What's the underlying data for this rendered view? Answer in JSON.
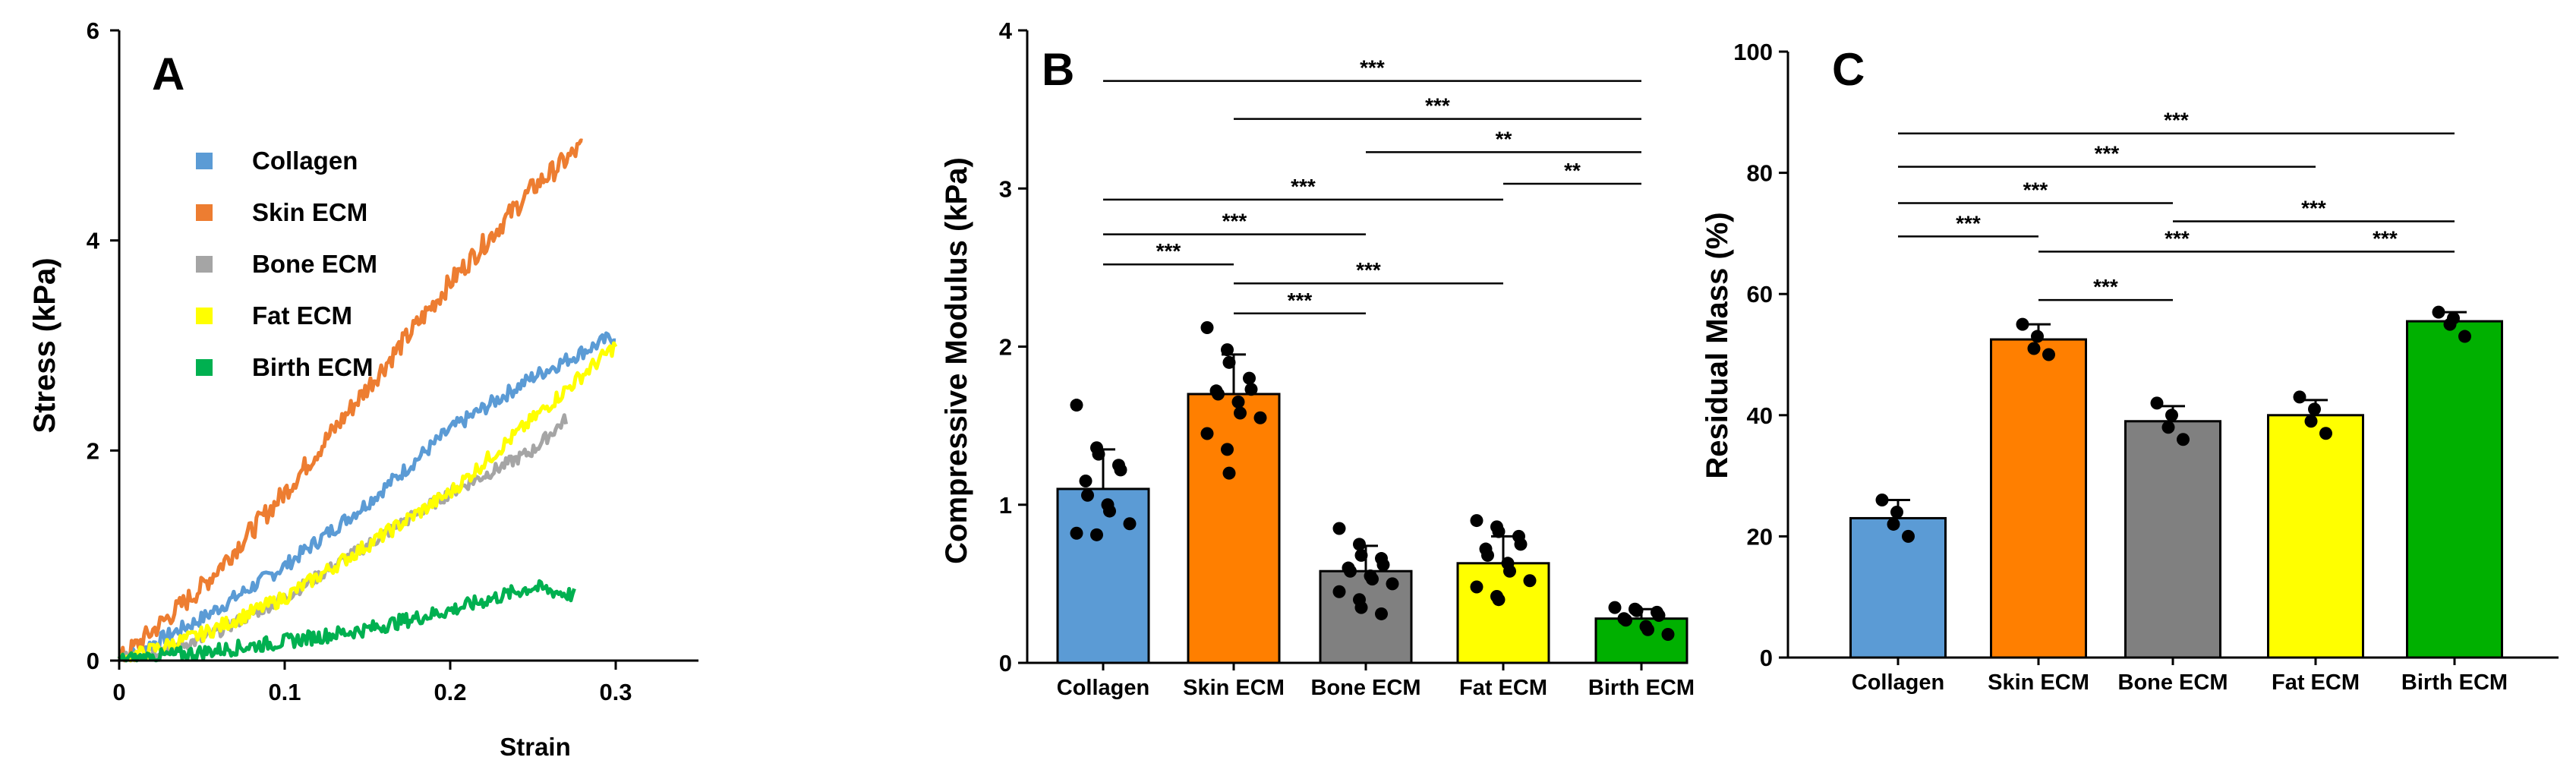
{
  "figure": {
    "panels": [
      "A",
      "B",
      "C"
    ]
  },
  "chart_data": [
    {
      "panel": "A",
      "type": "line",
      "xlabel": "Strain",
      "ylabel": "Stress (kPa)",
      "xlim": [
        0,
        0.35
      ],
      "ylim": [
        0,
        6
      ],
      "xticks": [
        0,
        0.1,
        0.2,
        0.3
      ],
      "xtick_labels": [
        "0",
        "0.1",
        "0.2",
        "0.3"
      ],
      "yticks": [
        0,
        2,
        4,
        6
      ],
      "ytick_labels": [
        "0",
        "2",
        "4",
        "6"
      ],
      "legend_position": "upper-left",
      "series": [
        {
          "name": "Collagen",
          "color": "#5B9BD5",
          "x": [
            0,
            0.05,
            0.1,
            0.15,
            0.2,
            0.25,
            0.3
          ],
          "y": [
            0,
            0.4,
            0.9,
            1.5,
            2.2,
            2.7,
            3.1
          ]
        },
        {
          "name": "Skin ECM",
          "color": "#ED7D31",
          "x": [
            0,
            0.05,
            0.1,
            0.15,
            0.2,
            0.25,
            0.28
          ],
          "y": [
            0,
            0.7,
            1.6,
            2.6,
            3.6,
            4.5,
            4.9
          ]
        },
        {
          "name": "Bone ECM",
          "color": "#A5A5A5",
          "x": [
            0,
            0.05,
            0.1,
            0.15,
            0.2,
            0.25,
            0.27
          ],
          "y": [
            0,
            0.2,
            0.6,
            1.1,
            1.6,
            2.0,
            2.3
          ]
        },
        {
          "name": "Fat ECM",
          "color": "#FFFF00",
          "x": [
            0,
            0.05,
            0.1,
            0.15,
            0.2,
            0.25,
            0.3
          ],
          "y": [
            0,
            0.25,
            0.6,
            1.1,
            1.6,
            2.3,
            3.0
          ]
        },
        {
          "name": "Birth ECM",
          "color": "#00B050",
          "x": [
            0,
            0.05,
            0.1,
            0.15,
            0.2,
            0.25,
            0.275
          ],
          "y": [
            0,
            0.08,
            0.18,
            0.3,
            0.48,
            0.7,
            0.62
          ]
        }
      ]
    },
    {
      "panel": "B",
      "type": "bar",
      "ylabel": "Compressive Modulus (kPa)",
      "ylim": [
        0,
        4
      ],
      "yticks": [
        0,
        1,
        2,
        3,
        4
      ],
      "ytick_labels": [
        "0",
        "1",
        "2",
        "3",
        "4"
      ],
      "categories": [
        "Collagen",
        "Skin ECM",
        "Bone ECM",
        "Fat ECM",
        "Birth ECM"
      ],
      "colors": [
        "#5B9BD5",
        "#FF7F00",
        "#808080",
        "#FFFF00",
        "#00B000"
      ],
      "values": [
        1.1,
        1.7,
        0.58,
        0.63,
        0.28
      ],
      "sd": [
        0.25,
        0.25,
        0.16,
        0.17,
        0.06
      ],
      "points": [
        [
          1.63,
          1.36,
          1.32,
          1.25,
          1.22,
          1.15,
          1.06,
          1.0,
          0.96,
          0.88,
          0.82,
          0.81
        ],
        [
          2.12,
          1.98,
          1.9,
          1.8,
          1.73,
          1.72,
          1.7,
          1.65,
          1.58,
          1.55,
          1.45,
          1.35,
          1.2
        ],
        [
          0.85,
          0.75,
          0.68,
          0.66,
          0.62,
          0.6,
          0.58,
          0.55,
          0.53,
          0.5,
          0.45,
          0.4,
          0.35,
          0.31
        ],
        [
          0.9,
          0.86,
          0.83,
          0.8,
          0.75,
          0.72,
          0.68,
          0.63,
          0.58,
          0.52,
          0.48,
          0.42,
          0.4
        ],
        [
          0.35,
          0.34,
          0.33,
          0.32,
          0.3,
          0.28,
          0.27,
          0.23,
          0.21,
          0.18
        ]
      ],
      "significance": [
        {
          "from": 0,
          "to": 4,
          "y": 3.68,
          "label": "***"
        },
        {
          "from": 1,
          "to": 4,
          "y": 3.44,
          "label": "***"
        },
        {
          "from": 2,
          "to": 4,
          "y": 3.23,
          "label": "**"
        },
        {
          "from": 3,
          "to": 4,
          "y": 3.03,
          "label": "**"
        },
        {
          "from": 0,
          "to": 3,
          "y": 2.93,
          "label": "***"
        },
        {
          "from": 0,
          "to": 2,
          "y": 2.71,
          "label": "***"
        },
        {
          "from": 0,
          "to": 1,
          "y": 2.52,
          "label": "***"
        },
        {
          "from": 1,
          "to": 3,
          "y": 2.4,
          "label": "***"
        },
        {
          "from": 1,
          "to": 2,
          "y": 2.21,
          "label": "***"
        }
      ]
    },
    {
      "panel": "C",
      "type": "bar",
      "ylabel": "Residual  Mass (%)",
      "ylim": [
        0,
        100
      ],
      "yticks": [
        0,
        20,
        40,
        60,
        80,
        100
      ],
      "ytick_labels": [
        "0",
        "20",
        "40",
        "60",
        "80",
        "100"
      ],
      "categories": [
        "Collagen",
        "Skin ECM",
        "Bone ECM",
        "Fat ECM",
        "Birth ECM"
      ],
      "colors": [
        "#5B9BD5",
        "#FF7F00",
        "#808080",
        "#FFFF00",
        "#00B000"
      ],
      "values": [
        23,
        52.5,
        39,
        40,
        55.5
      ],
      "sd": [
        3,
        2.5,
        2.5,
        2.5,
        1.5
      ],
      "points": [
        [
          26,
          24,
          22,
          20
        ],
        [
          55,
          53,
          51,
          50
        ],
        [
          42,
          40,
          38,
          36
        ],
        [
          43,
          41,
          39,
          37
        ],
        [
          57,
          56,
          55,
          53
        ]
      ],
      "significance": [
        {
          "from": 0,
          "to": 4,
          "y": 86.5,
          "label": "***"
        },
        {
          "from": 0,
          "to": 3,
          "y": 81,
          "label": "***"
        },
        {
          "from": 0,
          "to": 2,
          "y": 75,
          "label": "***"
        },
        {
          "from": 2,
          "to": 4,
          "y": 72,
          "label": "***"
        },
        {
          "from": 0,
          "to": 1,
          "y": 69.5,
          "label": "***"
        },
        {
          "from": 3,
          "to": 4,
          "y": 67,
          "label": "***"
        },
        {
          "from": 1,
          "to": 3,
          "y": 67,
          "label": "***"
        },
        {
          "from": 1,
          "to": 2,
          "y": 59,
          "label": "***"
        }
      ]
    }
  ]
}
